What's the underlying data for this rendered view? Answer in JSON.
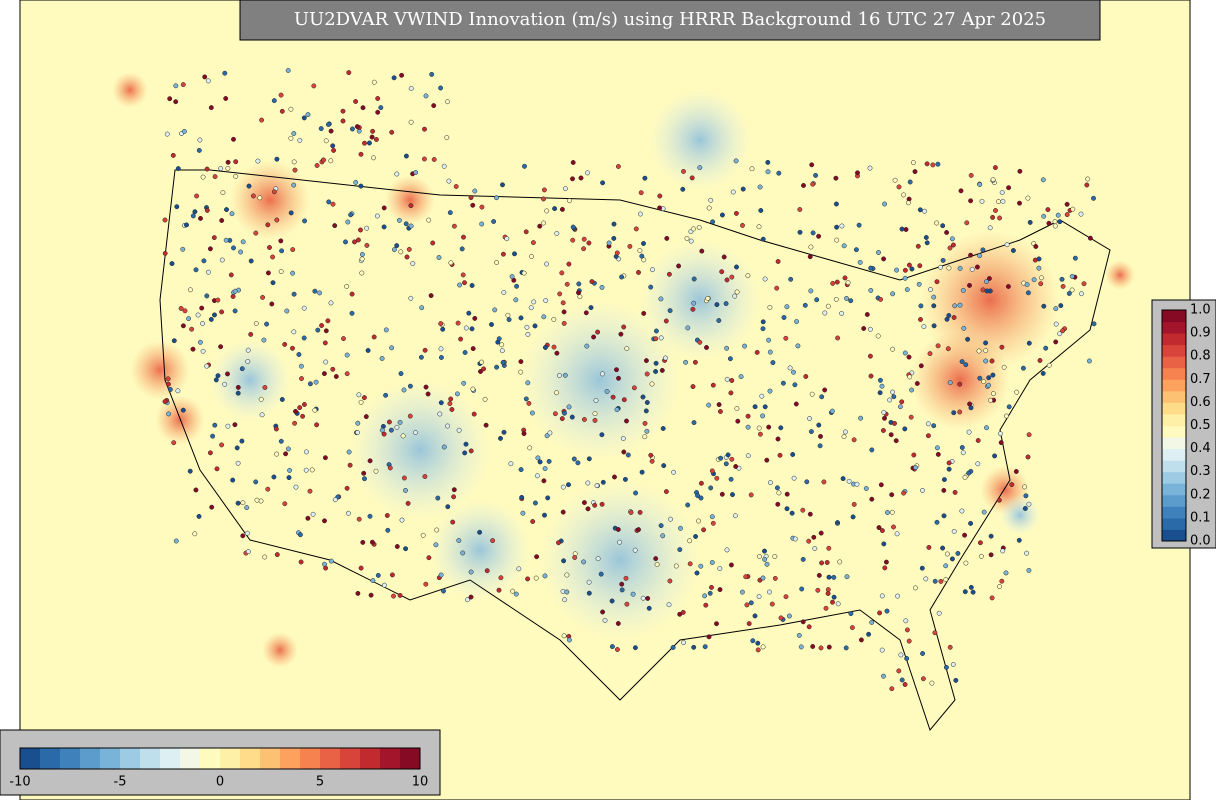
{
  "title": "UU2DVAR VWIND Innovation (m/s) using HRRR Background 16 UTC 27 Apr 2025",
  "colorbar_bottom": {
    "range": [
      -10,
      10
    ],
    "ticks": [
      -10,
      -5,
      0,
      5,
      10
    ]
  },
  "colorbar_right": {
    "range": [
      0,
      1
    ],
    "ticks": [
      {
        "value": 0,
        "label": "0.0"
      },
      {
        "value": 0.1,
        "label": "0.1"
      },
      {
        "value": 0.2,
        "label": "0.2"
      },
      {
        "value": 0.3,
        "label": "0.3"
      },
      {
        "value": 0.4,
        "label": "0.4"
      },
      {
        "value": 0.5,
        "label": "0.5"
      },
      {
        "value": 0.6,
        "label": "0.6"
      },
      {
        "value": 0.7,
        "label": "0.7"
      },
      {
        "value": 0.8,
        "label": "0.8"
      },
      {
        "value": 0.9,
        "label": "0.9"
      },
      {
        "value": 1,
        "label": "1.0"
      }
    ]
  }
}
